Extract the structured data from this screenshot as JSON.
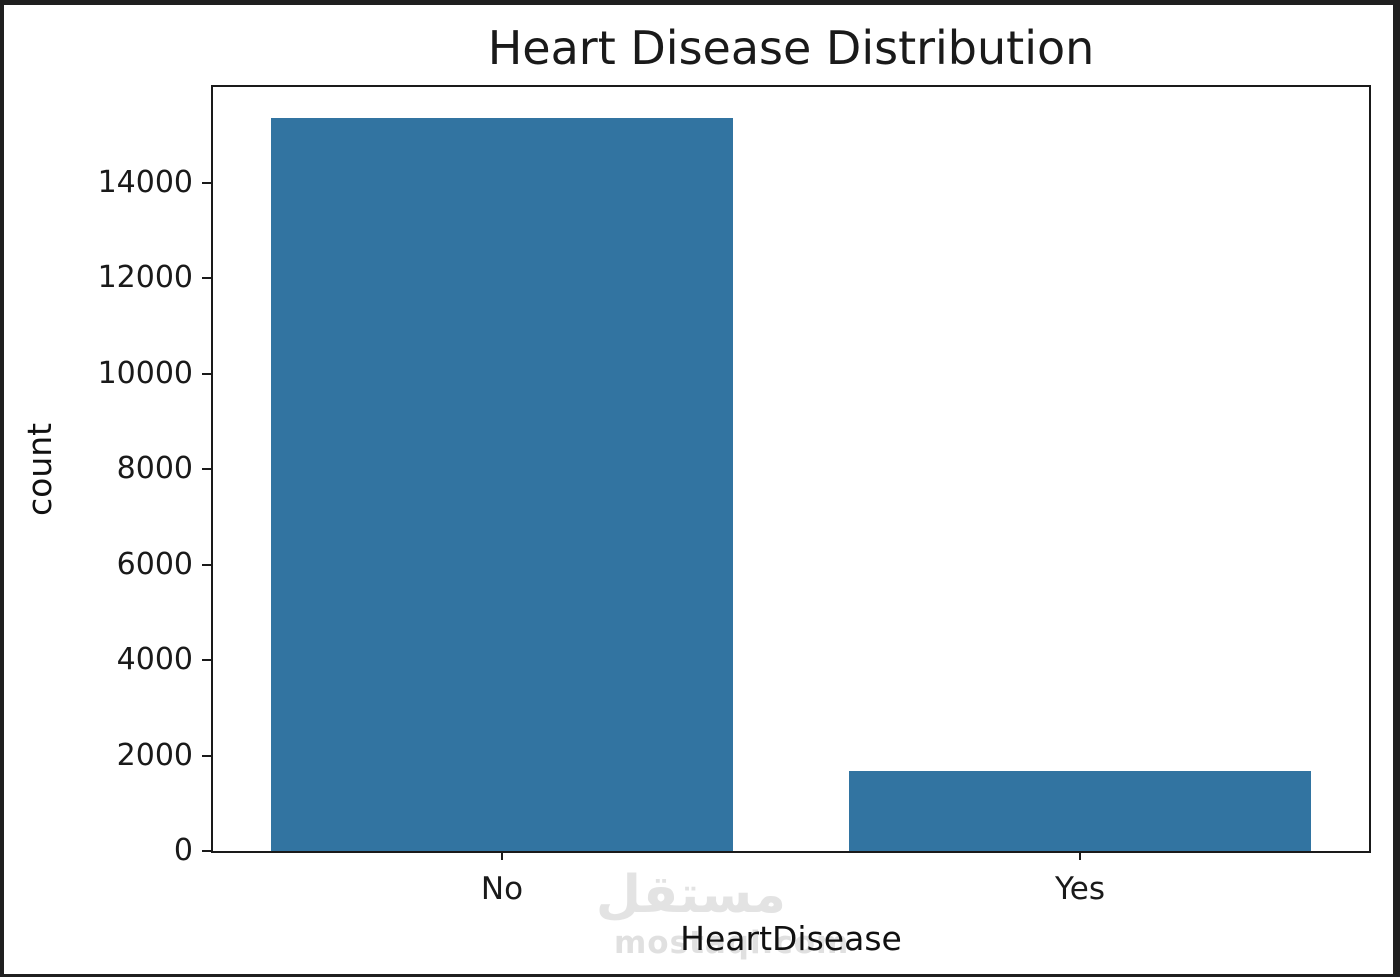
{
  "page": {
    "background": "#ffffff",
    "frame_border_color": "#1f1f1f"
  },
  "chart_data": {
    "type": "bar",
    "title": "Heart Disease Distribution",
    "xlabel": "HeartDisease",
    "ylabel": "count",
    "categories": [
      "No",
      "Yes"
    ],
    "values": [
      15350,
      1670
    ],
    "ylim": [
      0,
      16000
    ],
    "yticks": [
      0,
      2000,
      4000,
      6000,
      8000,
      10000,
      12000,
      14000
    ],
    "bar_color": "#3274a1",
    "bar_width_fraction": 0.8,
    "grid": false,
    "legend_position": "none",
    "text_color": "#1a1a1a"
  },
  "watermark": {
    "logo_text": "مستقل",
    "site_text": "mostaql.com",
    "color": "#e3e3e3"
  }
}
